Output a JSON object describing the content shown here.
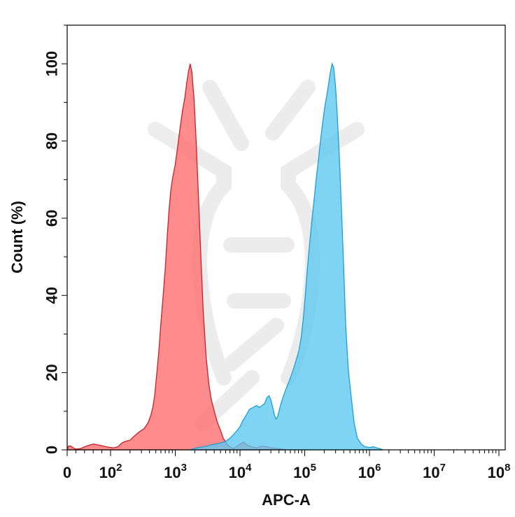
{
  "chart_data": {
    "type": "area",
    "title": "",
    "xlabel": "APC-A",
    "ylabel": "Count (%)",
    "x_scale": "log",
    "x_ticks": [
      {
        "value": 0,
        "base": "0",
        "exp": ""
      },
      {
        "value": 100,
        "base": "10",
        "exp": "2"
      },
      {
        "value": 1000,
        "base": "10",
        "exp": "3"
      },
      {
        "value": 10000,
        "base": "10",
        "exp": "4"
      },
      {
        "value": 100000,
        "base": "10",
        "exp": "5"
      },
      {
        "value": 1000000,
        "base": "10",
        "exp": "6"
      },
      {
        "value": 10000000,
        "base": "10",
        "exp": "7"
      },
      {
        "value": 100000000,
        "base": "10",
        "exp": "8"
      }
    ],
    "y_ticks": [
      0,
      20,
      40,
      60,
      80,
      100
    ],
    "ylim": [
      0,
      110
    ],
    "grid": false,
    "legend": "none",
    "series": [
      {
        "color": "#ff6b6b",
        "stroke": "#c8202a",
        "points": [
          [
            0,
            0
          ],
          [
            3,
            1
          ],
          [
            8,
            1
          ],
          [
            14,
            0.5
          ],
          [
            20,
            0.2
          ],
          [
            30,
            0.3
          ],
          [
            45,
            1
          ],
          [
            60,
            1.5
          ],
          [
            75,
            1.2
          ],
          [
            90,
            0.8
          ],
          [
            110,
            0.5
          ],
          [
            130,
            0.8
          ],
          [
            150,
            1.8
          ],
          [
            170,
            2.2
          ],
          [
            200,
            2.5
          ],
          [
            230,
            3.5
          ],
          [
            270,
            4.5
          ],
          [
            330,
            5.5
          ],
          [
            380,
            7
          ],
          [
            420,
            9
          ],
          [
            450,
            11
          ],
          [
            480,
            14
          ],
          [
            520,
            20
          ],
          [
            560,
            26
          ],
          [
            600,
            33
          ],
          [
            650,
            40
          ],
          [
            700,
            47
          ],
          [
            750,
            55
          ],
          [
            800,
            62
          ],
          [
            850,
            67
          ],
          [
            900,
            70
          ],
          [
            950,
            72
          ],
          [
            1000,
            74
          ],
          [
            1100,
            79
          ],
          [
            1200,
            84
          ],
          [
            1300,
            88
          ],
          [
            1400,
            91
          ],
          [
            1500,
            95
          ],
          [
            1600,
            98
          ],
          [
            1700,
            100
          ],
          [
            1800,
            98
          ],
          [
            1950,
            91
          ],
          [
            2100,
            80
          ],
          [
            2300,
            64
          ],
          [
            2500,
            49
          ],
          [
            2700,
            36
          ],
          [
            3000,
            24
          ],
          [
            3300,
            17
          ],
          [
            3600,
            13
          ],
          [
            4000,
            10
          ],
          [
            4500,
            7
          ],
          [
            5000,
            5
          ],
          [
            5500,
            3
          ],
          [
            6300,
            1.5
          ],
          [
            7000,
            0.8
          ],
          [
            8000,
            0.3
          ],
          [
            9000,
            1
          ],
          [
            10000,
            1.5
          ],
          [
            11500,
            2
          ],
          [
            13000,
            1.2
          ],
          [
            15000,
            0.8
          ],
          [
            18000,
            0.5
          ],
          [
            22000,
            1
          ],
          [
            26000,
            0.8
          ],
          [
            30000,
            0.5
          ],
          [
            40000,
            0.3
          ],
          [
            50000,
            0
          ]
        ]
      },
      {
        "color": "#5bc8f0",
        "stroke": "#1f9ecf",
        "points": [
          [
            1700,
            0
          ],
          [
            2000,
            0.4
          ],
          [
            2300,
            0.6
          ],
          [
            2700,
            0.8
          ],
          [
            3100,
            1
          ],
          [
            3600,
            1.3
          ],
          [
            4200,
            1.5
          ],
          [
            5000,
            1.8
          ],
          [
            6000,
            2.2
          ],
          [
            7000,
            3
          ],
          [
            8000,
            4
          ],
          [
            9000,
            5
          ],
          [
            10000,
            6
          ],
          [
            11000,
            7.5
          ],
          [
            12500,
            9
          ],
          [
            14000,
            10.5
          ],
          [
            16000,
            11
          ],
          [
            18000,
            11.5
          ],
          [
            20000,
            11
          ],
          [
            22000,
            11.5
          ],
          [
            24000,
            12
          ],
          [
            26000,
            13.5
          ],
          [
            28000,
            14
          ],
          [
            30000,
            13
          ],
          [
            32000,
            11
          ],
          [
            34000,
            9
          ],
          [
            36000,
            8
          ],
          [
            38000,
            8.5
          ],
          [
            40000,
            10
          ],
          [
            43000,
            12
          ],
          [
            47000,
            14
          ],
          [
            52000,
            16
          ],
          [
            58000,
            18
          ],
          [
            64000,
            20
          ],
          [
            70000,
            22
          ],
          [
            76000,
            24
          ],
          [
            82000,
            26
          ],
          [
            88000,
            29
          ],
          [
            95000,
            34
          ],
          [
            102000,
            40
          ],
          [
            110000,
            47
          ],
          [
            120000,
            54
          ],
          [
            130000,
            60
          ],
          [
            140000,
            65
          ],
          [
            150000,
            70
          ],
          [
            160000,
            74
          ],
          [
            175000,
            80
          ],
          [
            190000,
            85
          ],
          [
            205000,
            89
          ],
          [
            220000,
            92
          ],
          [
            235000,
            95
          ],
          [
            250000,
            98
          ],
          [
            265000,
            100
          ],
          [
            280000,
            99
          ],
          [
            300000,
            94
          ],
          [
            320000,
            86
          ],
          [
            345000,
            75
          ],
          [
            370000,
            62
          ],
          [
            400000,
            47
          ],
          [
            430000,
            32
          ],
          [
            470000,
            21
          ],
          [
            520000,
            14
          ],
          [
            580000,
            7
          ],
          [
            650000,
            3
          ],
          [
            750000,
            1.5
          ],
          [
            850000,
            0.8
          ],
          [
            1000000,
            0.6
          ],
          [
            1150000,
            0.8
          ],
          [
            1300000,
            0.5
          ],
          [
            1450000,
            0.3
          ],
          [
            1600000,
            0
          ]
        ]
      }
    ]
  }
}
